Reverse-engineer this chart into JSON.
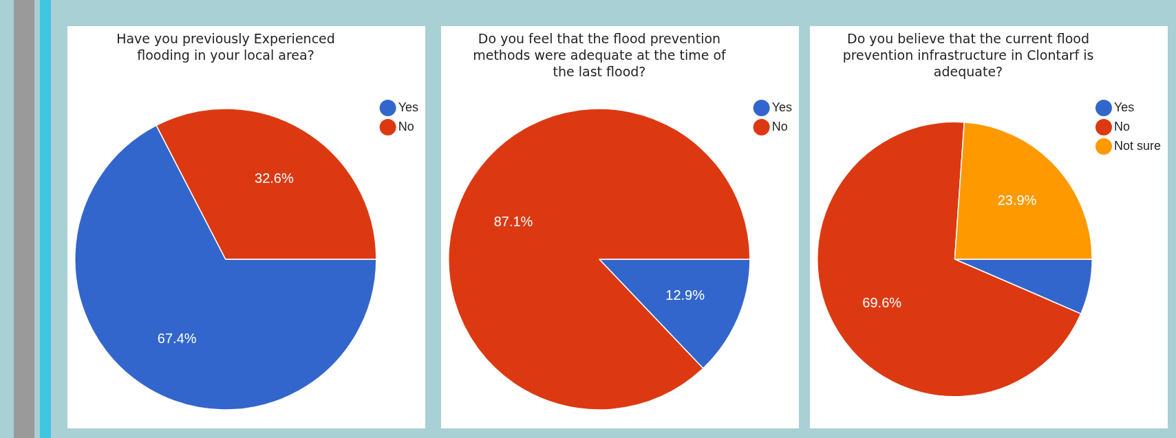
{
  "chart_data": [
    {
      "type": "pie",
      "title": "Have you previously Experienced flooding in your local area?",
      "categories": [
        "Yes",
        "No"
      ],
      "values": [
        67.4,
        32.6
      ],
      "colors": [
        "#3366cc",
        "#dc3912"
      ],
      "value_labels": [
        "67.4%",
        "32.6%"
      ],
      "legend": "top right"
    },
    {
      "type": "pie",
      "title": "Do you feel that the flood prevention methods were adequate at the time of the last flood?",
      "categories": [
        "Yes",
        "No"
      ],
      "values": [
        12.9,
        87.1
      ],
      "colors": [
        "#3366cc",
        "#dc3912"
      ],
      "value_labels": [
        "12.9%",
        "87.1%"
      ],
      "legend": "top right"
    },
    {
      "type": "pie",
      "title": "Do you believe that the current flood prevention infrastructure in Clontarf is adequate?",
      "categories": [
        "Yes",
        "No",
        "Not sure"
      ],
      "values": [
        6.5,
        69.6,
        23.9
      ],
      "colors": [
        "#3366cc",
        "#dc3912",
        "#ff9900"
      ],
      "value_labels": [
        null,
        "69.6%",
        "23.9%"
      ],
      "legend": "top right"
    }
  ]
}
